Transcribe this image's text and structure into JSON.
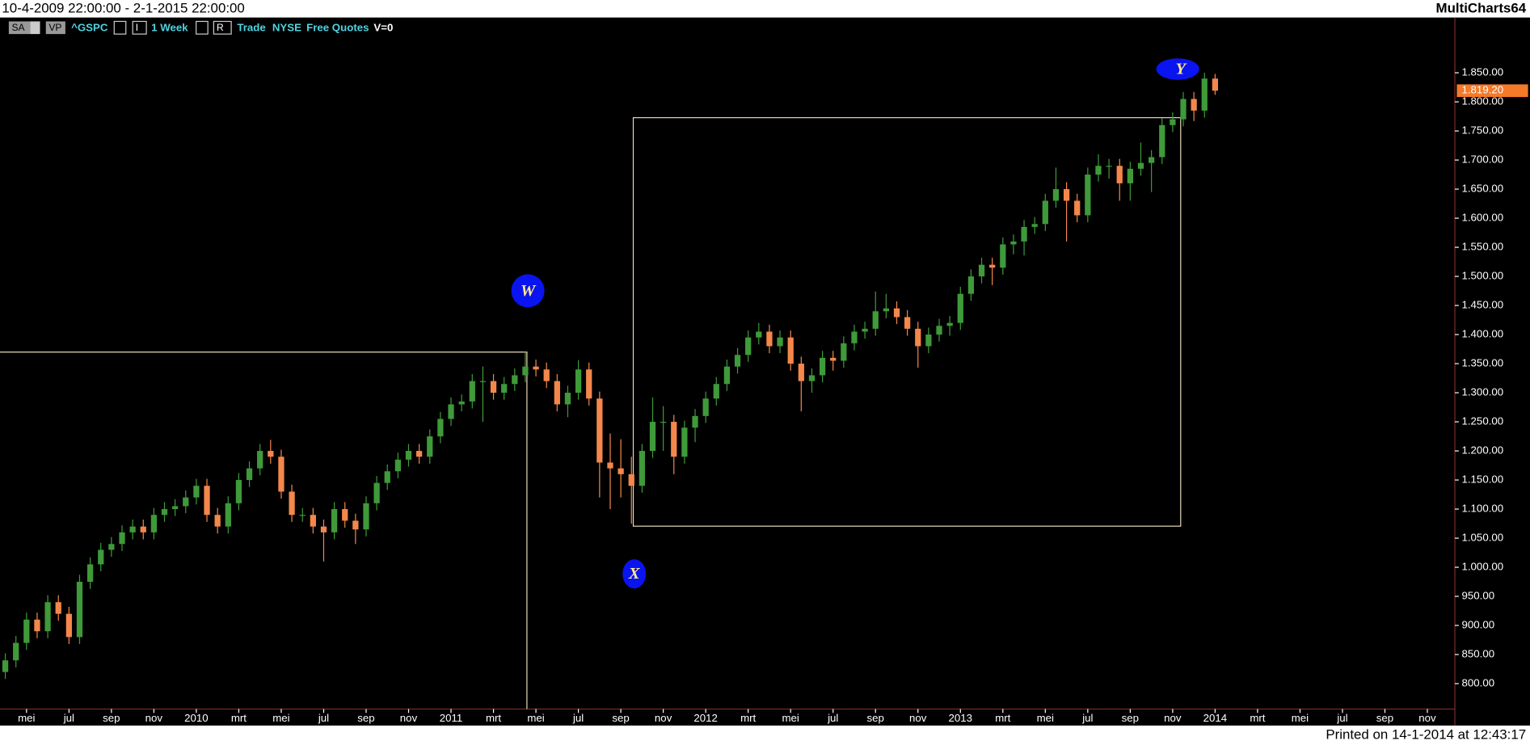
{
  "header": {
    "range": "10-4-2009 22:00:00 - 2-1-2015 22:00:00",
    "app": "MultiCharts64"
  },
  "toolbar": [
    "SA",
    "VP",
    "^GSPC",
    "I",
    "1 Week",
    "R",
    "Trade",
    "NYSE",
    "Free Quotes",
    "V=0"
  ],
  "footer": {
    "printed": "Printed on 14-1-2014 at 12:43:17"
  },
  "annotations": [
    "W",
    "X",
    "Y"
  ],
  "chart_data": {
    "type": "candlestick",
    "up_color": "#3f9a3a",
    "down_color": "#f4874b",
    "ylim": [
      758,
      1945
    ],
    "yticks": [
      {
        "value": 800,
        "label": "800.00"
      },
      {
        "value": 850,
        "label": "850.00"
      },
      {
        "value": 900,
        "label": "900.00"
      },
      {
        "value": 950,
        "label": "950.00"
      },
      {
        "value": 1000,
        "label": "1.000.00"
      },
      {
        "value": 1050,
        "label": "1.050.00"
      },
      {
        "value": 1100,
        "label": "1.100.00"
      },
      {
        "value": 1150,
        "label": "1.150.00"
      },
      {
        "value": 1200,
        "label": "1.200.00"
      },
      {
        "value": 1250,
        "label": "1.250.00"
      },
      {
        "value": 1300,
        "label": "1.300.00"
      },
      {
        "value": 1350,
        "label": "1.350.00"
      },
      {
        "value": 1400,
        "label": "1.400.00"
      },
      {
        "value": 1450,
        "label": "1.450.00"
      },
      {
        "value": 1500,
        "label": "1.500.00"
      },
      {
        "value": 1550,
        "label": "1.550.00"
      },
      {
        "value": 1600,
        "label": "1.600.00"
      },
      {
        "value": 1650,
        "label": "1.650.00"
      },
      {
        "value": 1700,
        "label": "1.700.00"
      },
      {
        "value": 1750,
        "label": "1.750.00"
      },
      {
        "value": 1800,
        "label": "1.800.00"
      },
      {
        "value": 1850,
        "label": "1.850.00"
      }
    ],
    "last_price": {
      "value": 1819.2,
      "label": "1.819.20"
    },
    "categories": [
      null,
      null,
      "mei",
      null,
      null,
      null,
      "jul",
      null,
      null,
      null,
      "sep",
      null,
      null,
      null,
      "nov",
      null,
      null,
      null,
      "2010",
      null,
      null,
      null,
      "mrt",
      null,
      null,
      null,
      "mei",
      null,
      null,
      null,
      "jul",
      null,
      null,
      null,
      "sep",
      null,
      null,
      null,
      "nov",
      null,
      null,
      null,
      "2011",
      null,
      null,
      null,
      "mrt",
      null,
      null,
      null,
      "mei",
      null,
      null,
      null,
      "jul",
      null,
      null,
      null,
      "sep",
      null,
      null,
      null,
      "nov",
      null,
      null,
      null,
      "2012",
      null,
      null,
      null,
      "mrt",
      null,
      null,
      null,
      "mei",
      null,
      null,
      null,
      "jul",
      null,
      null,
      null,
      "sep",
      null,
      null,
      null,
      "nov",
      null,
      null,
      null,
      "2013",
      null,
      null,
      null,
      "mrt",
      null,
      null,
      null,
      "mei",
      null,
      null,
      null,
      "jul",
      null,
      null,
      null,
      "sep",
      null,
      null,
      null,
      "nov",
      null,
      null,
      null,
      "2014",
      null,
      null,
      null,
      "mrt",
      null,
      null,
      null,
      "mei",
      null,
      null,
      null,
      "jul",
      null,
      null,
      null,
      "sep",
      null,
      null,
      null,
      "nov",
      null,
      null
    ],
    "ohlc": [
      [
        820,
        852,
        808,
        840
      ],
      [
        840,
        882,
        828,
        870
      ],
      [
        870,
        922,
        858,
        910
      ],
      [
        910,
        922,
        878,
        890
      ],
      [
        890,
        952,
        878,
        940
      ],
      [
        940,
        952,
        908,
        920
      ],
      [
        920,
        932,
        868,
        880
      ],
      [
        880,
        987,
        868,
        975
      ],
      [
        975,
        1017,
        963,
        1005
      ],
      [
        1005,
        1042,
        993,
        1030
      ],
      [
        1030,
        1052,
        1018,
        1040
      ],
      [
        1040,
        1072,
        1028,
        1060
      ],
      [
        1060,
        1082,
        1048,
        1070
      ],
      [
        1070,
        1082,
        1048,
        1060
      ],
      [
        1060,
        1102,
        1048,
        1090
      ],
      [
        1090,
        1112,
        1078,
        1100
      ],
      [
        1100,
        1117,
        1088,
        1105
      ],
      [
        1105,
        1132,
        1093,
        1120
      ],
      [
        1120,
        1152,
        1108,
        1140
      ],
      [
        1140,
        1152,
        1078,
        1090
      ],
      [
        1090,
        1102,
        1058,
        1070
      ],
      [
        1070,
        1122,
        1058,
        1110
      ],
      [
        1110,
        1162,
        1098,
        1150
      ],
      [
        1150,
        1182,
        1138,
        1170
      ],
      [
        1170,
        1212,
        1158,
        1200
      ],
      [
        1200,
        1219,
        1178,
        1190
      ],
      [
        1190,
        1202,
        1118,
        1130
      ],
      [
        1130,
        1142,
        1078,
        1090
      ],
      [
        1090,
        1102,
        1078,
        1090
      ],
      [
        1090,
        1102,
        1058,
        1070
      ],
      [
        1070,
        1082,
        1010,
        1060
      ],
      [
        1060,
        1112,
        1048,
        1100
      ],
      [
        1100,
        1112,
        1068,
        1080
      ],
      [
        1080,
        1092,
        1040,
        1065
      ],
      [
        1065,
        1122,
        1053,
        1110
      ],
      [
        1110,
        1157,
        1098,
        1145
      ],
      [
        1145,
        1177,
        1133,
        1165
      ],
      [
        1165,
        1197,
        1153,
        1185
      ],
      [
        1185,
        1212,
        1173,
        1200
      ],
      [
        1200,
        1212,
        1178,
        1190
      ],
      [
        1190,
        1237,
        1178,
        1225
      ],
      [
        1225,
        1267,
        1213,
        1255
      ],
      [
        1255,
        1292,
        1243,
        1280
      ],
      [
        1280,
        1297,
        1268,
        1285
      ],
      [
        1285,
        1332,
        1273,
        1320
      ],
      [
        1320,
        1345,
        1250,
        1320
      ],
      [
        1320,
        1332,
        1288,
        1300
      ],
      [
        1300,
        1327,
        1288,
        1315
      ],
      [
        1315,
        1342,
        1303,
        1330
      ],
      [
        1330,
        1370,
        1318,
        1345
      ],
      [
        1345,
        1357,
        1328,
        1340
      ],
      [
        1340,
        1352,
        1308,
        1320
      ],
      [
        1320,
        1332,
        1268,
        1280
      ],
      [
        1280,
        1312,
        1258,
        1300
      ],
      [
        1300,
        1356,
        1288,
        1340
      ],
      [
        1340,
        1352,
        1278,
        1290
      ],
      [
        1290,
        1302,
        1120,
        1180
      ],
      [
        1180,
        1230,
        1100,
        1170
      ],
      [
        1170,
        1220,
        1120,
        1160
      ],
      [
        1160,
        1190,
        1075,
        1140
      ],
      [
        1140,
        1212,
        1128,
        1200
      ],
      [
        1200,
        1292,
        1188,
        1250
      ],
      [
        1250,
        1277,
        1200,
        1250
      ],
      [
        1250,
        1262,
        1160,
        1190
      ],
      [
        1190,
        1252,
        1178,
        1240
      ],
      [
        1240,
        1272,
        1215,
        1260
      ],
      [
        1260,
        1302,
        1248,
        1290
      ],
      [
        1290,
        1327,
        1278,
        1315
      ],
      [
        1315,
        1357,
        1303,
        1345
      ],
      [
        1345,
        1377,
        1333,
        1365
      ],
      [
        1365,
        1407,
        1353,
        1395
      ],
      [
        1395,
        1420,
        1383,
        1405
      ],
      [
        1405,
        1417,
        1368,
        1380
      ],
      [
        1380,
        1407,
        1368,
        1395
      ],
      [
        1395,
        1407,
        1338,
        1350
      ],
      [
        1350,
        1362,
        1268,
        1320
      ],
      [
        1320,
        1342,
        1300,
        1330
      ],
      [
        1330,
        1372,
        1318,
        1360
      ],
      [
        1360,
        1372,
        1338,
        1355
      ],
      [
        1355,
        1397,
        1343,
        1385
      ],
      [
        1385,
        1417,
        1373,
        1405
      ],
      [
        1405,
        1422,
        1393,
        1410
      ],
      [
        1410,
        1474,
        1398,
        1440
      ],
      [
        1440,
        1470,
        1428,
        1445
      ],
      [
        1445,
        1457,
        1418,
        1430
      ],
      [
        1430,
        1442,
        1398,
        1410
      ],
      [
        1410,
        1422,
        1343,
        1380
      ],
      [
        1380,
        1412,
        1368,
        1400
      ],
      [
        1400,
        1427,
        1388,
        1415
      ],
      [
        1415,
        1432,
        1398,
        1420
      ],
      [
        1420,
        1482,
        1408,
        1470
      ],
      [
        1470,
        1512,
        1458,
        1500
      ],
      [
        1500,
        1532,
        1488,
        1520
      ],
      [
        1520,
        1532,
        1485,
        1515
      ],
      [
        1515,
        1567,
        1503,
        1555
      ],
      [
        1555,
        1572,
        1538,
        1560
      ],
      [
        1560,
        1597,
        1536,
        1585
      ],
      [
        1585,
        1602,
        1573,
        1590
      ],
      [
        1590,
        1642,
        1578,
        1630
      ],
      [
        1630,
        1687,
        1618,
        1650
      ],
      [
        1650,
        1662,
        1560,
        1630
      ],
      [
        1630,
        1642,
        1593,
        1605
      ],
      [
        1605,
        1687,
        1593,
        1675
      ],
      [
        1675,
        1710,
        1663,
        1690
      ],
      [
        1690,
        1702,
        1668,
        1690
      ],
      [
        1690,
        1702,
        1630,
        1660
      ],
      [
        1660,
        1697,
        1630,
        1685
      ],
      [
        1685,
        1730,
        1673,
        1695
      ],
      [
        1695,
        1717,
        1645,
        1705
      ],
      [
        1705,
        1772,
        1693,
        1760
      ],
      [
        1760,
        1782,
        1748,
        1770
      ],
      [
        1770,
        1817,
        1758,
        1805
      ],
      [
        1805,
        1817,
        1767,
        1785
      ],
      [
        1785,
        1850,
        1773,
        1840
      ],
      [
        1840,
        1848,
        1812,
        1819.2
      ],
      null,
      null,
      null,
      null,
      null,
      null,
      null,
      null,
      null,
      null,
      null,
      null,
      null,
      null,
      null,
      null,
      null,
      null,
      null,
      null,
      null,
      null
    ]
  }
}
